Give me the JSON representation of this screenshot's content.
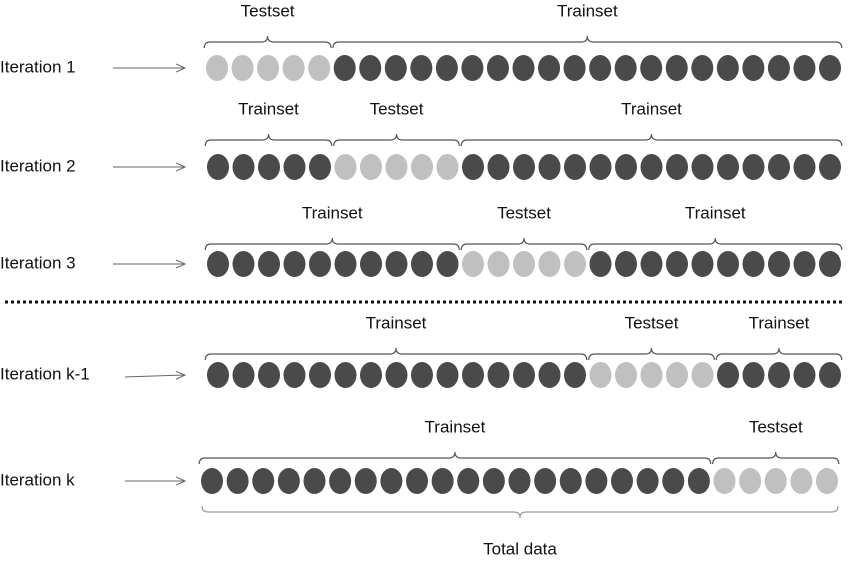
{
  "rows": [
    {
      "label": "Iteration 1",
      "segments": [
        "Testset",
        "Trainset"
      ]
    },
    {
      "label": "Iteration 2",
      "segments": [
        "Trainset",
        "Testset",
        "Trainset"
      ]
    },
    {
      "label": "Iteration 3",
      "segments": [
        "Trainset",
        "Testset",
        "Trainset"
      ]
    },
    {
      "label": "Iteration k-1",
      "segments": [
        "Trainset",
        "Testset",
        "Trainset"
      ]
    },
    {
      "label": "Iteration k",
      "segments": [
        "Trainset",
        "Testset"
      ]
    }
  ],
  "total_label": "Total data"
}
